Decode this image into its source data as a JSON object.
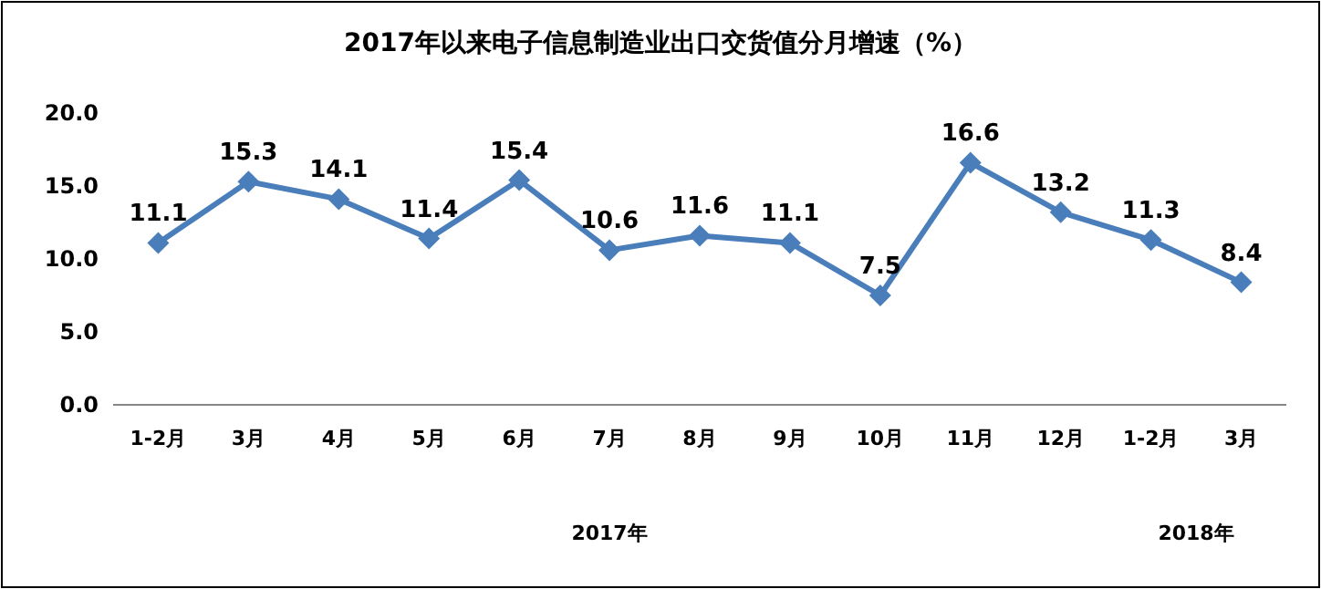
{
  "chart_data": {
    "type": "line",
    "title": "2017年以来电子信息制造业出口交货值分月增速（%）",
    "categories": [
      "1-2月",
      "3月",
      "4月",
      "5月",
      "6月",
      "7月",
      "8月",
      "9月",
      "10月",
      "11月",
      "12月",
      "1-2月",
      "3月"
    ],
    "values": [
      11.1,
      15.3,
      14.1,
      11.4,
      15.4,
      10.6,
      11.6,
      11.1,
      7.5,
      16.6,
      13.2,
      11.3,
      8.4
    ],
    "color": "#4a7ebb",
    "marker": "diamond",
    "line_style": "solid",
    "data_labels": true,
    "ylim": [
      0,
      20
    ],
    "yticks": [
      {
        "value": 0,
        "label": "0.0"
      },
      {
        "value": 5,
        "label": "5.0"
      },
      {
        "value": 10,
        "label": "10.0"
      },
      {
        "value": 15,
        "label": "15.0"
      },
      {
        "value": 20,
        "label": "20.0"
      }
    ],
    "annotations": [
      "2017年",
      "2018年"
    ]
  }
}
